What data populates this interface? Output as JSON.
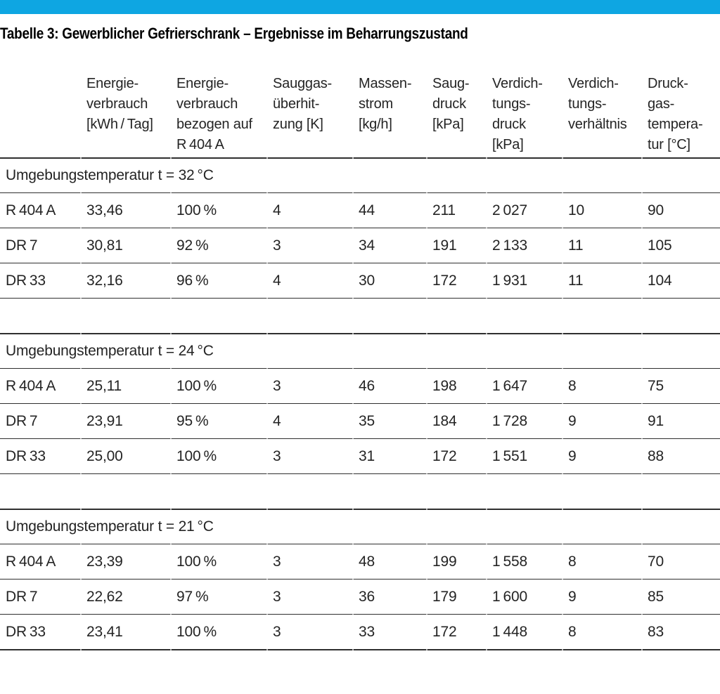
{
  "page": {
    "accent_color": "#0ea6e2",
    "rule_color": "#2f2f2f",
    "rule_notch_color": "#ababab",
    "title": "Tabelle 3: Gewerblicher Gefrierschrank – Ergebnisse im Beharrungszustand"
  },
  "table": {
    "columns": [
      "",
      "Energie-\nverbrauch\n[kWh / Tag]",
      "Energie-\nverbrauch\nbezogen auf\nR 404 A",
      "Sauggas-\nüberhit-\nzung [K]",
      "Massen-\nstrom\n[kg/h]",
      "Saug-\ndruck\n[kPa]",
      "Verdich-\ntungs-\ndruck\n[kPa]",
      "Verdich-\ntungs-\nverhältnis",
      "Druck-\ngas-\ntempera-\ntur [°C]"
    ],
    "sections": [
      {
        "heading": "Umgebungstemperatur t = 32 °C",
        "rows": [
          {
            "label": "R 404 A",
            "values": [
              "33,46",
              "100 %",
              "4",
              "44",
              "211",
              "2 027",
              "10",
              "90"
            ]
          },
          {
            "label": "DR 7",
            "values": [
              "30,81",
              "92 %",
              "3",
              "34",
              "191",
              "2 133",
              "11",
              "105"
            ]
          },
          {
            "label": "DR 33",
            "values": [
              "32,16",
              "96 %",
              "4",
              "30",
              "172",
              "1 931",
              "11",
              "104"
            ]
          }
        ]
      },
      {
        "heading": "Umgebungstemperatur t = 24 °C",
        "rows": [
          {
            "label": "R 404 A",
            "values": [
              "25,11",
              "100 %",
              "3",
              "46",
              "198",
              "1 647",
              "8",
              "75"
            ]
          },
          {
            "label": "DR 7",
            "values": [
              "23,91",
              "95 %",
              "4",
              "35",
              "184",
              "1 728",
              "9",
              "91"
            ]
          },
          {
            "label": "DR 33",
            "values": [
              "25,00",
              "100 %",
              "3",
              "31",
              "172",
              "1 551",
              "9",
              "88"
            ]
          }
        ]
      },
      {
        "heading": "Umgebungstemperatur t = 21 °C",
        "rows": [
          {
            "label": "R 404 A",
            "values": [
              "23,39",
              "100 %",
              "3",
              "48",
              "199",
              "1 558",
              "8",
              "70"
            ]
          },
          {
            "label": "DR 7",
            "values": [
              "22,62",
              "97 %",
              "3",
              "36",
              "179",
              "1 600",
              "9",
              "85"
            ]
          },
          {
            "label": "DR 33",
            "values": [
              "23,41",
              "100 %",
              "3",
              "33",
              "172",
              "1 448",
              "8",
              "83"
            ]
          }
        ]
      }
    ]
  }
}
